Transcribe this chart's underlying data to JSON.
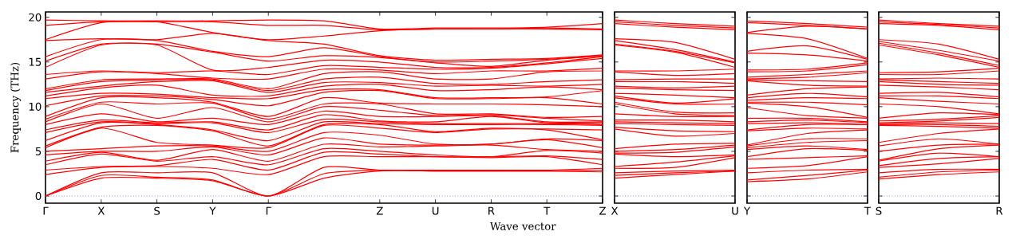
{
  "chart_data": [
    {
      "type": "line",
      "xlabel": "Wave vector",
      "ylabel": "Frequency (THz)",
      "categories": [
        "Γ",
        "X",
        "S",
        "Y",
        "Γ",
        null,
        "Z",
        "U",
        "R",
        "T",
        "Z"
      ],
      "ylim": [
        -0.8,
        20.6
      ],
      "yticks": [
        0,
        5,
        10,
        15,
        20
      ],
      "ref_lines": [
        {
          "axis": "y",
          "value": 0,
          "color": "#0000ff",
          "line_style": "dotted"
        }
      ],
      "series": [
        {
          "color": "#ff0000",
          "values": [
            0,
            2.0,
            2.0,
            1.7,
            0,
            2.0,
            2.8,
            2.8,
            2.8,
            2.8,
            2.7
          ]
        },
        {
          "color": "#ff0000",
          "values": [
            0,
            2.3,
            2.1,
            1.8,
            0,
            2.5,
            2.9,
            2.8,
            2.8,
            2.8,
            2.9
          ]
        },
        {
          "color": "#ff0000",
          "values": [
            0,
            2.6,
            2.6,
            2.6,
            0,
            3.2,
            2.9,
            2.9,
            2.9,
            2.9,
            3.1
          ]
        },
        {
          "color": "#ff0000",
          "values": [
            2.4,
            3.2,
            3.3,
            3.1,
            2.4,
            4.4,
            4.4,
            4.4,
            4.3,
            4.4,
            3.5
          ]
        },
        {
          "color": "#ff0000",
          "values": [
            2.9,
            3.3,
            3.4,
            4.1,
            2.9,
            4.9,
            4.7,
            4.4,
            4.4,
            4.5,
            4.1
          ]
        },
        {
          "color": "#ff0000",
          "values": [
            3.5,
            4.7,
            3.9,
            4.4,
            3.5,
            5.3,
            5.0,
            4.6,
            4.4,
            5.1,
            4.8
          ]
        },
        {
          "color": "#ff0000",
          "values": [
            3.9,
            4.9,
            4.0,
            5.2,
            3.9,
            5.8,
            5.5,
            5.6,
            5.7,
            5.2,
            5.0
          ]
        },
        {
          "color": "#ff0000",
          "values": [
            4.6,
            5.0,
            5.0,
            5.5,
            4.6,
            6.5,
            5.8,
            5.7,
            5.8,
            6.3,
            5.4
          ]
        },
        {
          "color": "#ff0000",
          "values": [
            5.0,
            5.3,
            5.6,
            5.6,
            5.0,
            7.1,
            6.8,
            5.8,
            5.8,
            6.4,
            6.2
          ]
        },
        {
          "color": "#ff0000",
          "values": [
            5.4,
            7.6,
            6.0,
            5.7,
            5.4,
            7.9,
            7.6,
            7.1,
            7.5,
            7.4,
            6.3
          ]
        },
        {
          "color": "#ff0000",
          "values": [
            5.6,
            7.7,
            7.9,
            7.3,
            5.6,
            8.0,
            8.0,
            7.2,
            7.6,
            7.5,
            7.4
          ]
        },
        {
          "color": "#ff0000",
          "values": [
            6.2,
            8.2,
            8.0,
            7.4,
            6.2,
            8.3,
            8.1,
            8.0,
            8.0,
            8.0,
            7.9
          ]
        },
        {
          "color": "#ff0000",
          "values": [
            7.1,
            8.3,
            8.1,
            8.2,
            7.1,
            8.6,
            8.3,
            8.1,
            8.1,
            8.1,
            8.0
          ]
        },
        {
          "color": "#ff0000",
          "values": [
            7.4,
            8.5,
            8.2,
            8.3,
            7.4,
            9.1,
            8.4,
            8.3,
            8.9,
            8.2,
            8.2
          ]
        },
        {
          "color": "#ff0000",
          "values": [
            8.0,
            9.2,
            8.3,
            8.7,
            8.0,
            9.5,
            8.9,
            8.9,
            9.0,
            8.3,
            8.3
          ]
        },
        {
          "color": "#ff0000",
          "values": [
            8.3,
            10.3,
            8.7,
            9.9,
            8.3,
            10.0,
            9.6,
            9.0,
            9.1,
            8.7,
            8.4
          ]
        },
        {
          "color": "#ff0000",
          "values": [
            8.6,
            10.5,
            10.3,
            10.4,
            8.6,
            10.3,
            10.3,
            9.2,
            9.2,
            8.8,
            8.9
          ]
        },
        {
          "color": "#ff0000",
          "values": [
            8.9,
            11.0,
            11.0,
            10.5,
            8.9,
            11.0,
            10.4,
            10.3,
            10.3,
            10.2,
            10.0
          ]
        },
        {
          "color": "#ff0000",
          "values": [
            10.1,
            11.2,
            11.2,
            10.8,
            10.1,
            11.6,
            11.8,
            10.9,
            10.9,
            11.0,
            10.3
          ]
        },
        {
          "color": "#ff0000",
          "values": [
            10.9,
            11.5,
            11.4,
            11.0,
            10.9,
            11.9,
            11.9,
            11.0,
            11.0,
            11.1,
            11.8
          ]
        },
        {
          "color": "#ff0000",
          "values": [
            11.2,
            12.1,
            12.4,
            11.3,
            11.2,
            12.3,
            12.5,
            11.8,
            11.9,
            12.2,
            11.9
          ]
        },
        {
          "color": "#ff0000",
          "values": [
            11.6,
            12.3,
            12.8,
            12.9,
            11.6,
            12.7,
            12.7,
            12.3,
            12.4,
            12.3,
            12.5
          ]
        },
        {
          "color": "#ff0000",
          "values": [
            11.8,
            12.8,
            13.0,
            13.0,
            11.8,
            13.1,
            13.3,
            12.6,
            12.5,
            12.8,
            13.0
          ]
        },
        {
          "color": "#ff0000",
          "values": [
            12.0,
            13.0,
            13.1,
            13.1,
            12.0,
            13.7,
            13.9,
            13.1,
            13.1,
            13.9,
            14.0
          ]
        },
        {
          "color": "#ff0000",
          "values": [
            13.1,
            13.9,
            13.7,
            13.2,
            13.1,
            14.2,
            14.1,
            13.7,
            14.0,
            14.0,
            14.3
          ]
        },
        {
          "color": "#ff0000",
          "values": [
            13.6,
            14.0,
            13.8,
            14.0,
            13.6,
            14.6,
            14.4,
            14.2,
            14.3,
            14.8,
            15.4
          ]
        },
        {
          "color": "#ff0000",
          "values": [
            14.4,
            16.9,
            16.9,
            14.1,
            14.4,
            15.2,
            15.0,
            14.4,
            14.4,
            14.9,
            15.6
          ]
        },
        {
          "color": "#ff0000",
          "values": [
            15.1,
            17.0,
            17.0,
            16.1,
            15.1,
            15.7,
            15.5,
            14.9,
            14.5,
            15.2,
            15.7
          ]
        },
        {
          "color": "#ff0000",
          "values": [
            15.6,
            17.5,
            17.4,
            16.2,
            15.6,
            16.6,
            15.6,
            15.0,
            15.1,
            15.3,
            15.7
          ]
        },
        {
          "color": "#ff0000",
          "values": [
            17.4,
            17.6,
            17.5,
            18.2,
            17.4,
            17.0,
            15.7,
            15.2,
            15.3,
            15.4,
            15.8
          ]
        },
        {
          "color": "#ff0000",
          "values": [
            17.5,
            19.4,
            19.5,
            18.3,
            17.5,
            17.9,
            18.5,
            18.7,
            18.7,
            18.7,
            18.6
          ]
        },
        {
          "color": "#ff0000",
          "values": [
            19.1,
            19.5,
            19.5,
            19.5,
            19.1,
            19.1,
            18.6,
            18.7,
            18.7,
            18.8,
            18.7
          ]
        },
        {
          "color": "#ff0000",
          "values": [
            19.7,
            19.6,
            19.6,
            19.6,
            19.7,
            19.6,
            18.7,
            18.8,
            18.8,
            18.9,
            19.3
          ]
        }
      ]
    },
    {
      "type": "line",
      "categories": [
        "X",
        null,
        "U"
      ],
      "ylim": [
        -0.8,
        20.6
      ],
      "yticks": [
        0,
        5,
        10,
        15,
        20
      ],
      "tick_labels": "x",
      "ref_lines": [
        {
          "axis": "y",
          "value": 0,
          "color": "#0000ff",
          "line_style": "dotted"
        }
      ],
      "series": [
        {
          "color": "#ff0000",
          "values": [
            2.0,
            2.4,
            2.8
          ]
        },
        {
          "color": "#ff0000",
          "values": [
            2.3,
            2.6,
            2.8
          ]
        },
        {
          "color": "#ff0000",
          "values": [
            2.6,
            2.8,
            2.9
          ]
        },
        {
          "color": "#ff0000",
          "values": [
            3.1,
            3.2,
            4.3
          ]
        },
        {
          "color": "#ff0000",
          "values": [
            3.3,
            3.8,
            4.5
          ]
        },
        {
          "color": "#ff0000",
          "values": [
            4.7,
            4.4,
            4.6
          ]
        },
        {
          "color": "#ff0000",
          "values": [
            4.8,
            4.9,
            5.5
          ]
        },
        {
          "color": "#ff0000",
          "values": [
            5.0,
            5.2,
            5.7
          ]
        },
        {
          "color": "#ff0000",
          "values": [
            5.3,
            5.8,
            5.9
          ]
        },
        {
          "color": "#ff0000",
          "values": [
            7.5,
            6.7,
            7.0
          ]
        },
        {
          "color": "#ff0000",
          "values": [
            7.7,
            7.3,
            7.2
          ]
        },
        {
          "color": "#ff0000",
          "values": [
            8.1,
            8.0,
            7.9
          ]
        },
        {
          "color": "#ff0000",
          "values": [
            8.3,
            8.2,
            8.1
          ]
        },
        {
          "color": "#ff0000",
          "values": [
            8.5,
            8.5,
            8.3
          ]
        },
        {
          "color": "#ff0000",
          "values": [
            9.2,
            8.9,
            8.9
          ]
        },
        {
          "color": "#ff0000",
          "values": [
            10.3,
            9.2,
            9.0
          ]
        },
        {
          "color": "#ff0000",
          "values": [
            10.5,
            9.4,
            9.3
          ]
        },
        {
          "color": "#ff0000",
          "values": [
            11.0,
            10.3,
            10.3
          ]
        },
        {
          "color": "#ff0000",
          "values": [
            11.2,
            10.4,
            10.9
          ]
        },
        {
          "color": "#ff0000",
          "values": [
            11.5,
            11.3,
            11.0
          ]
        },
        {
          "color": "#ff0000",
          "values": [
            12.1,
            11.9,
            11.8
          ]
        },
        {
          "color": "#ff0000",
          "values": [
            12.3,
            12.1,
            12.3
          ]
        },
        {
          "color": "#ff0000",
          "values": [
            12.8,
            12.8,
            12.6
          ]
        },
        {
          "color": "#ff0000",
          "values": [
            13.0,
            13.1,
            13.1
          ]
        },
        {
          "color": "#ff0000",
          "values": [
            13.9,
            13.5,
            13.7
          ]
        },
        {
          "color": "#ff0000",
          "values": [
            14.0,
            14.0,
            14.2
          ]
        },
        {
          "color": "#ff0000",
          "values": [
            16.9,
            16.1,
            14.4
          ]
        },
        {
          "color": "#ff0000",
          "values": [
            17.0,
            16.2,
            14.9
          ]
        },
        {
          "color": "#ff0000",
          "values": [
            17.4,
            16.4,
            15.0
          ]
        },
        {
          "color": "#ff0000",
          "values": [
            17.6,
            17.2,
            15.3
          ]
        },
        {
          "color": "#ff0000",
          "values": [
            19.3,
            18.9,
            18.6
          ]
        },
        {
          "color": "#ff0000",
          "values": [
            19.5,
            19.1,
            18.8
          ]
        },
        {
          "color": "#ff0000",
          "values": [
            19.7,
            19.3,
            19.0
          ]
        }
      ]
    },
    {
      "type": "line",
      "categories": [
        "Y",
        null,
        "T"
      ],
      "ylim": [
        -0.8,
        20.6
      ],
      "yticks": [
        0,
        5,
        10,
        15,
        20
      ],
      "tick_labels": "x",
      "ref_lines": [
        {
          "axis": "y",
          "value": 0,
          "color": "#0000ff",
          "line_style": "dotted"
        }
      ],
      "series": [
        {
          "color": "#ff0000",
          "values": [
            1.6,
            1.9,
            2.7
          ]
        },
        {
          "color": "#ff0000",
          "values": [
            1.8,
            2.3,
            2.9
          ]
        },
        {
          "color": "#ff0000",
          "values": [
            2.6,
            2.9,
            3.0
          ]
        },
        {
          "color": "#ff0000",
          "values": [
            3.1,
            3.4,
            4.4
          ]
        },
        {
          "color": "#ff0000",
          "values": [
            4.1,
            4.3,
            4.5
          ]
        },
        {
          "color": "#ff0000",
          "values": [
            4.4,
            5.3,
            5.1
          ]
        },
        {
          "color": "#ff0000",
          "values": [
            5.2,
            5.6,
            5.2
          ]
        },
        {
          "color": "#ff0000",
          "values": [
            5.4,
            6.0,
            6.2
          ]
        },
        {
          "color": "#ff0000",
          "values": [
            5.6,
            6.4,
            6.4
          ]
        },
        {
          "color": "#ff0000",
          "values": [
            5.7,
            7.0,
            7.4
          ]
        },
        {
          "color": "#ff0000",
          "values": [
            7.3,
            7.6,
            7.5
          ]
        },
        {
          "color": "#ff0000",
          "values": [
            7.4,
            8.0,
            8.0
          ]
        },
        {
          "color": "#ff0000",
          "values": [
            8.1,
            8.2,
            8.0
          ]
        },
        {
          "color": "#ff0000",
          "values": [
            8.3,
            8.5,
            8.2
          ]
        },
        {
          "color": "#ff0000",
          "values": [
            8.7,
            8.7,
            8.3
          ]
        },
        {
          "color": "#ff0000",
          "values": [
            9.9,
            9.0,
            8.7
          ]
        },
        {
          "color": "#ff0000",
          "values": [
            10.4,
            10.0,
            8.8
          ]
        },
        {
          "color": "#ff0000",
          "values": [
            10.5,
            10.5,
            10.2
          ]
        },
        {
          "color": "#ff0000",
          "values": [
            10.7,
            11.0,
            10.9
          ]
        },
        {
          "color": "#ff0000",
          "values": [
            11.0,
            11.5,
            11.1
          ]
        },
        {
          "color": "#ff0000",
          "values": [
            11.3,
            12.0,
            12.2
          ]
        },
        {
          "color": "#ff0000",
          "values": [
            12.9,
            12.4,
            12.3
          ]
        },
        {
          "color": "#ff0000",
          "values": [
            13.0,
            12.9,
            12.8
          ]
        },
        {
          "color": "#ff0000",
          "values": [
            13.1,
            13.3,
            13.8
          ]
        },
        {
          "color": "#ff0000",
          "values": [
            13.3,
            13.6,
            14.0
          ]
        },
        {
          "color": "#ff0000",
          "values": [
            13.9,
            14.0,
            14.7
          ]
        },
        {
          "color": "#ff0000",
          "values": [
            14.1,
            14.2,
            14.9
          ]
        },
        {
          "color": "#ff0000",
          "values": [
            16.0,
            15.8,
            15.1
          ]
        },
        {
          "color": "#ff0000",
          "values": [
            16.2,
            16.8,
            15.3
          ]
        },
        {
          "color": "#ff0000",
          "values": [
            18.2,
            17.6,
            15.4
          ]
        },
        {
          "color": "#ff0000",
          "values": [
            18.3,
            19.0,
            18.7
          ]
        },
        {
          "color": "#ff0000",
          "values": [
            19.4,
            19.1,
            18.7
          ]
        },
        {
          "color": "#ff0000",
          "values": [
            19.6,
            19.3,
            18.9
          ]
        }
      ]
    },
    {
      "type": "line",
      "categories": [
        "S",
        null,
        "R"
      ],
      "ylim": [
        -0.8,
        20.6
      ],
      "yticks": [
        0,
        5,
        10,
        15,
        20
      ],
      "tick_labels": "x",
      "ref_lines": [
        {
          "axis": "y",
          "value": 0,
          "color": "#0000ff",
          "line_style": "dotted"
        }
      ],
      "series": [
        {
          "color": "#ff0000",
          "values": [
            1.9,
            2.4,
            2.7
          ]
        },
        {
          "color": "#ff0000",
          "values": [
            2.1,
            2.7,
            2.9
          ]
        },
        {
          "color": "#ff0000",
          "values": [
            2.6,
            3.0,
            3.0
          ]
        },
        {
          "color": "#ff0000",
          "values": [
            3.2,
            3.6,
            4.2
          ]
        },
        {
          "color": "#ff0000",
          "values": [
            3.4,
            4.2,
            4.4
          ]
        },
        {
          "color": "#ff0000",
          "values": [
            3.9,
            4.8,
            4.4
          ]
        },
        {
          "color": "#ff0000",
          "values": [
            4.0,
            5.3,
            5.7
          ]
        },
        {
          "color": "#ff0000",
          "values": [
            5.0,
            5.7,
            5.8
          ]
        },
        {
          "color": "#ff0000",
          "values": [
            5.6,
            6.4,
            5.8
          ]
        },
        {
          "color": "#ff0000",
          "values": [
            6.0,
            7.0,
            7.5
          ]
        },
        {
          "color": "#ff0000",
          "values": [
            7.9,
            7.8,
            7.6
          ]
        },
        {
          "color": "#ff0000",
          "values": [
            8.0,
            8.0,
            7.8
          ]
        },
        {
          "color": "#ff0000",
          "values": [
            8.1,
            8.2,
            8.1
          ]
        },
        {
          "color": "#ff0000",
          "values": [
            8.2,
            8.4,
            8.8
          ]
        },
        {
          "color": "#ff0000",
          "values": [
            8.4,
            8.6,
            9.0
          ]
        },
        {
          "color": "#ff0000",
          "values": [
            8.7,
            9.3,
            9.1
          ]
        },
        {
          "color": "#ff0000",
          "values": [
            10.3,
            10.0,
            9.2
          ]
        },
        {
          "color": "#ff0000",
          "values": [
            11.0,
            10.6,
            10.3
          ]
        },
        {
          "color": "#ff0000",
          "values": [
            11.2,
            11.2,
            10.9
          ]
        },
        {
          "color": "#ff0000",
          "values": [
            11.5,
            11.6,
            11.1
          ]
        },
        {
          "color": "#ff0000",
          "values": [
            12.4,
            12.2,
            11.9
          ]
        },
        {
          "color": "#ff0000",
          "values": [
            12.8,
            12.5,
            12.4
          ]
        },
        {
          "color": "#ff0000",
          "values": [
            13.0,
            12.8,
            12.6
          ]
        },
        {
          "color": "#ff0000",
          "values": [
            13.1,
            13.2,
            13.1
          ]
        },
        {
          "color": "#ff0000",
          "values": [
            13.6,
            13.6,
            14.0
          ]
        },
        {
          "color": "#ff0000",
          "values": [
            13.8,
            13.9,
            14.3
          ]
        },
        {
          "color": "#ff0000",
          "values": [
            16.9,
            15.8,
            14.4
          ]
        },
        {
          "color": "#ff0000",
          "values": [
            17.1,
            16.0,
            14.6
          ]
        },
        {
          "color": "#ff0000",
          "values": [
            17.3,
            16.3,
            15.1
          ]
        },
        {
          "color": "#ff0000",
          "values": [
            17.5,
            17.0,
            15.3
          ]
        },
        {
          "color": "#ff0000",
          "values": [
            19.3,
            19.1,
            18.6
          ]
        },
        {
          "color": "#ff0000",
          "values": [
            19.5,
            19.2,
            18.8
          ]
        },
        {
          "color": "#ff0000",
          "values": [
            19.7,
            19.3,
            19.0
          ]
        }
      ]
    }
  ]
}
